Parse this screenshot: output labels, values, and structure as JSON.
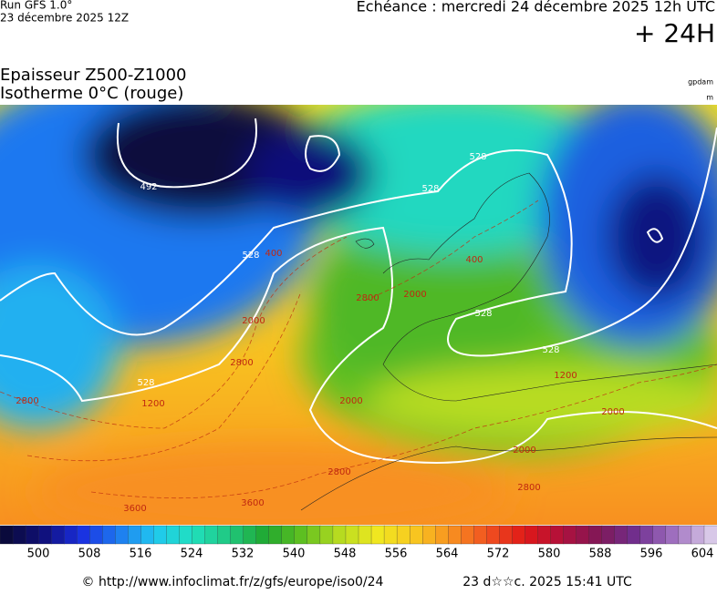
{
  "header": {
    "run": "Run GFS 1.0°",
    "run_date": "23 décembre 2025 12Z",
    "echeance": "Echéance : mercredi 24 décembre 2025 12h UTC",
    "lead": "+ 24H"
  },
  "title": {
    "line1": "Epaisseur Z500-Z1000",
    "line2": "Isotherme 0°C (rouge)",
    "unit1": "gpdam",
    "unit2": "m"
  },
  "contour_labels": [
    "492",
    "528",
    "528",
    "528",
    "528",
    "528",
    "528",
    "400",
    "2800",
    "2000",
    "2000",
    "1200",
    "2800",
    "2000",
    "2800",
    "3600",
    "3600",
    "2800",
    "1200",
    "2000",
    "2000",
    "2800",
    "400"
  ],
  "colorbar": {
    "stops": [
      "#0a0a3c",
      "#10107a",
      "#1a2ee0",
      "#1e78f0",
      "#20c8f0",
      "#20e0c0",
      "#20c880",
      "#20a830",
      "#60c020",
      "#b8dc20",
      "#f0e820",
      "#f8c820",
      "#f89020",
      "#f05020",
      "#e01818",
      "#b0103c",
      "#801858",
      "#703090",
      "#a070c0",
      "#d8c8e8"
    ],
    "labels": [
      "500",
      "508",
      "516",
      "524",
      "532",
      "540",
      "548",
      "556",
      "564",
      "572",
      "580",
      "588",
      "596",
      "604"
    ]
  },
  "footer": {
    "url": "© http://www.infoclimat.fr/z/gfs/europe/iso0/24",
    "stamp": "23 d☆☆c. 2025 15:41 UTC"
  }
}
